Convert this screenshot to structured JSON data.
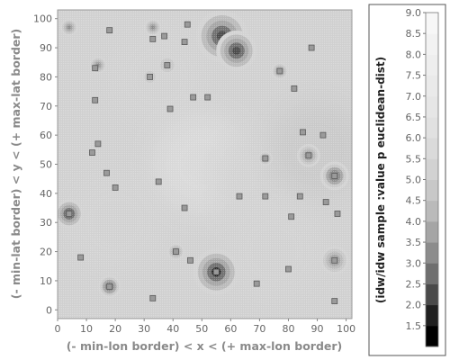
{
  "chart_data": {
    "type": "heatmap",
    "title": "",
    "xlabel": "(- min-lon border) < x < (+ max-lon border)",
    "ylabel": "(- min-lat border) < y < (+ max-lat border)",
    "xlim": [
      0,
      102
    ],
    "ylim": [
      -3,
      103
    ],
    "x_ticks": [
      0,
      10,
      20,
      30,
      40,
      50,
      60,
      70,
      80,
      90,
      100
    ],
    "y_ticks": [
      0,
      10,
      20,
      30,
      40,
      50,
      60,
      70,
      80,
      90,
      100
    ],
    "grid": false,
    "legend": "none",
    "colorbar": {
      "label": "(idw/idw sample :value p euclidean-dist)",
      "range": [
        1.0,
        9.0
      ],
      "ticks": [
        "1.5",
        "2.0",
        "2.5",
        "3.0",
        "3.5",
        "4.0",
        "4.5",
        "5.0",
        "5.5",
        "6.0",
        "6.5",
        "7.0",
        "7.5",
        "8.0",
        "8.5",
        "9.0"
      ],
      "tick_values": [
        1.5,
        2.0,
        2.5,
        3.0,
        3.5,
        4.0,
        4.5,
        5.0,
        5.5,
        6.0,
        6.5,
        7.0,
        7.5,
        8.0,
        8.5,
        9.0
      ],
      "colors": [
        "#000000",
        "#202020",
        "#4a4a4a",
        "#6f6f6f",
        "#8c8c8c",
        "#a5a5a5",
        "#bababa",
        "#c8c8c8",
        "#d2d2d2",
        "#dadada",
        "#e1e1e1",
        "#e6e6e6",
        "#eaeaea",
        "#eeeeee",
        "#f2f2f2",
        "#f7f7f7"
      ]
    },
    "background_regions": [
      {
        "x": 20,
        "y": 30,
        "value": 5.1
      },
      {
        "x": 35,
        "y": 80,
        "value": 5.3
      },
      {
        "x": 50,
        "y": 50,
        "value": 5.5
      },
      {
        "x": 70,
        "y": 45,
        "value": 5.0
      },
      {
        "x": 90,
        "y": 55,
        "value": 4.7
      },
      {
        "x": 75,
        "y": 20,
        "value": 5.2
      }
    ],
    "peaks": [
      {
        "x": 4,
        "y": 97,
        "value": 2.5,
        "r": 3
      },
      {
        "x": 33,
        "y": 97,
        "value": 2.5,
        "r": 3
      },
      {
        "x": 57,
        "y": 94,
        "value": 1.5,
        "r": 9
      },
      {
        "x": 62,
        "y": 89,
        "value": 1.5,
        "r": 7
      },
      {
        "x": 14,
        "y": 84,
        "value": 3.0,
        "r": 3
      },
      {
        "x": 38,
        "y": 84,
        "value": 3.5,
        "r": 3
      },
      {
        "x": 77,
        "y": 82,
        "value": 3.0,
        "r": 3
      },
      {
        "x": 32,
        "y": 80,
        "value": 3.5,
        "r": 2.5
      },
      {
        "x": 87,
        "y": 53,
        "value": 3.0,
        "r": 4
      },
      {
        "x": 96,
        "y": 46,
        "value": 2.0,
        "r": 5
      },
      {
        "x": 72,
        "y": 52,
        "value": 2.5,
        "r": 2.5
      },
      {
        "x": 4,
        "y": 33,
        "value": 1.5,
        "r": 5
      },
      {
        "x": 41,
        "y": 20,
        "value": 3.0,
        "r": 3
      },
      {
        "x": 18,
        "y": 8,
        "value": 2.0,
        "r": 4
      },
      {
        "x": 55,
        "y": 13,
        "value": 1.0,
        "r": 8
      },
      {
        "x": 96,
        "y": 17,
        "value": 3.0,
        "r": 5
      }
    ],
    "markers": [
      {
        "x": 18,
        "y": 96
      },
      {
        "x": 33,
        "y": 93
      },
      {
        "x": 37,
        "y": 94
      },
      {
        "x": 45,
        "y": 98
      },
      {
        "x": 44,
        "y": 92
      },
      {
        "x": 88,
        "y": 90
      },
      {
        "x": 13,
        "y": 83
      },
      {
        "x": 38,
        "y": 84
      },
      {
        "x": 32,
        "y": 80
      },
      {
        "x": 77,
        "y": 82
      },
      {
        "x": 82,
        "y": 76
      },
      {
        "x": 13,
        "y": 72
      },
      {
        "x": 47,
        "y": 73
      },
      {
        "x": 52,
        "y": 73
      },
      {
        "x": 39,
        "y": 69
      },
      {
        "x": 85,
        "y": 61
      },
      {
        "x": 92,
        "y": 60
      },
      {
        "x": 14,
        "y": 57
      },
      {
        "x": 12,
        "y": 54
      },
      {
        "x": 72,
        "y": 52
      },
      {
        "x": 87,
        "y": 53
      },
      {
        "x": 17,
        "y": 47
      },
      {
        "x": 96,
        "y": 46
      },
      {
        "x": 20,
        "y": 42
      },
      {
        "x": 35,
        "y": 44
      },
      {
        "x": 63,
        "y": 39
      },
      {
        "x": 72,
        "y": 39
      },
      {
        "x": 84,
        "y": 39
      },
      {
        "x": 93,
        "y": 37
      },
      {
        "x": 44,
        "y": 35
      },
      {
        "x": 4,
        "y": 33
      },
      {
        "x": 97,
        "y": 33
      },
      {
        "x": 81,
        "y": 32
      },
      {
        "x": 41,
        "y": 20
      },
      {
        "x": 8,
        "y": 18
      },
      {
        "x": 96,
        "y": 17
      },
      {
        "x": 46,
        "y": 17
      },
      {
        "x": 80,
        "y": 14
      },
      {
        "x": 55,
        "y": 13
      },
      {
        "x": 69,
        "y": 9
      },
      {
        "x": 18,
        "y": 8
      },
      {
        "x": 33,
        "y": 4
      },
      {
        "x": 96,
        "y": 3
      }
    ]
  }
}
